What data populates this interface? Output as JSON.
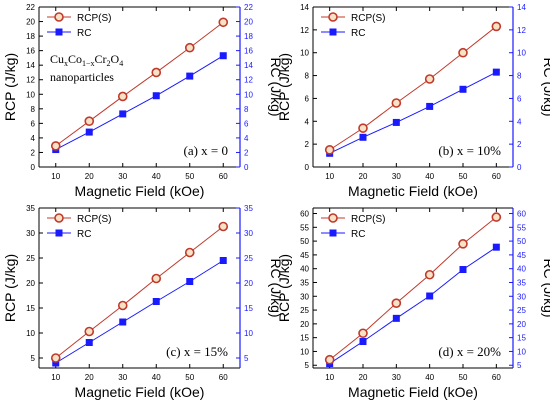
{
  "figure": {
    "legend": {
      "rcp": "RCP(S)",
      "rc": "RC"
    },
    "xlabel": "Magnetic Field (kOe)",
    "ylabel_left": "RCP (J/kg)",
    "ylabel_right": "RC (J/kg)",
    "annotation": {
      "main": "Cu",
      "main_sub": "x",
      "co": "Co",
      "co_sub": "1−x",
      "cr": "Cr",
      "cr_sub": "2",
      "o": "O",
      "o_sub": "4",
      "line2": "nanoparticles"
    }
  },
  "chart_data": [
    {
      "type": "line",
      "panel_label": "(a) x = 0",
      "x": [
        10,
        20,
        30,
        40,
        50,
        60
      ],
      "xticks": [
        10,
        20,
        30,
        40,
        50,
        60
      ],
      "ylim": [
        0,
        22
      ],
      "yticks": [
        0,
        2,
        4,
        6,
        8,
        10,
        12,
        14,
        16,
        18,
        20,
        22
      ],
      "rcp_color": "#c0392b",
      "rc_color": "#1a1aff",
      "series": [
        {
          "name": "RCP(S)",
          "values": [
            2.9,
            6.3,
            9.7,
            13.0,
            16.4,
            19.9
          ]
        },
        {
          "name": "RC",
          "values": [
            2.4,
            4.8,
            7.3,
            9.8,
            12.5,
            15.3
          ]
        }
      ]
    },
    {
      "type": "line",
      "panel_label": "(b) x = 10%",
      "x": [
        10,
        20,
        30,
        40,
        50,
        60
      ],
      "xticks": [
        10,
        20,
        30,
        40,
        50,
        60
      ],
      "ylim": [
        0,
        14
      ],
      "yticks": [
        0,
        2,
        4,
        6,
        8,
        10,
        12,
        14
      ],
      "rcp_color": "#c0392b",
      "rc_color": "#1a1aff",
      "series": [
        {
          "name": "RCP(S)",
          "values": [
            1.5,
            3.4,
            5.6,
            7.7,
            10.0,
            12.3
          ]
        },
        {
          "name": "RC",
          "values": [
            1.2,
            2.6,
            3.9,
            5.3,
            6.8,
            8.3
          ]
        }
      ]
    },
    {
      "type": "line",
      "panel_label": "(c) x = 15%",
      "x": [
        10,
        20,
        30,
        40,
        50,
        60
      ],
      "xticks": [
        10,
        20,
        30,
        40,
        50,
        60
      ],
      "ylim": [
        3,
        35
      ],
      "yticks": [
        5,
        10,
        15,
        20,
        25,
        30,
        35
      ],
      "rcp_color": "#c0392b",
      "rc_color": "#1a1aff",
      "series": [
        {
          "name": "RCP(S)",
          "values": [
            5.0,
            10.3,
            15.5,
            20.9,
            26.1,
            31.3
          ]
        },
        {
          "name": "RC",
          "values": [
            4.0,
            8.1,
            12.2,
            16.3,
            20.3,
            24.5
          ]
        }
      ]
    },
    {
      "type": "line",
      "panel_label": "(d) x = 20%",
      "x": [
        10,
        20,
        30,
        40,
        50,
        60
      ],
      "xticks": [
        10,
        20,
        30,
        40,
        50,
        60
      ],
      "ylim": [
        4,
        62
      ],
      "yticks": [
        5,
        10,
        15,
        20,
        25,
        30,
        35,
        40,
        45,
        50,
        55,
        60
      ],
      "rcp_color": "#c0392b",
      "rc_color": "#1a1aff",
      "series": [
        {
          "name": "RCP(S)",
          "values": [
            7.0,
            16.6,
            27.5,
            37.8,
            49.0,
            58.7
          ]
        },
        {
          "name": "RC",
          "values": [
            5.6,
            13.6,
            22.0,
            30.1,
            39.7,
            47.8
          ]
        }
      ]
    }
  ]
}
